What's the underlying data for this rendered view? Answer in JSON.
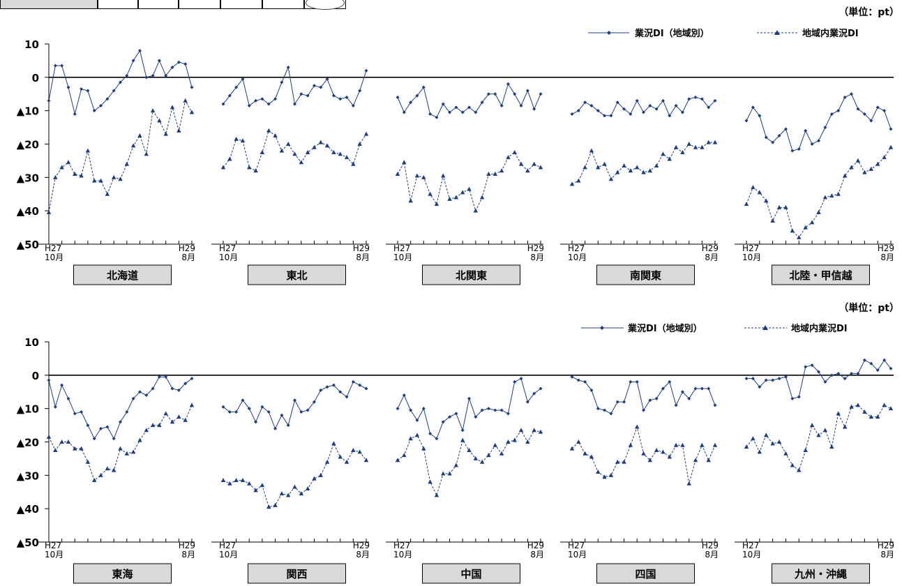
{
  "unit_label": "（単位：pt）",
  "legend": {
    "business": "業況DI（地域別）",
    "regional": "地域内業況DI"
  },
  "y_axis": {
    "ticks": [
      10,
      0,
      -10,
      -20,
      -30,
      -40,
      -50
    ],
    "tick_labels": [
      "10",
      "0",
      "▲10",
      "▲20",
      "▲30",
      "▲40",
      "▲50"
    ]
  },
  "x_axis": {
    "start_label": [
      "H27",
      "10月"
    ],
    "end_label": [
      "H29",
      "8月"
    ]
  },
  "colors": {
    "line": "#1f3d7a",
    "box_fill": "#d9d9d9"
  },
  "chart_data": [
    {
      "type": "line",
      "title": "北海道",
      "ylim": [
        -50,
        10
      ],
      "series": [
        {
          "name": "業況DI（地域別）",
          "values": [
            -7,
            3.5,
            3.5,
            -3,
            -11,
            -3.5,
            -4,
            -10,
            -8.5,
            -6.5,
            -4,
            -1.5,
            0.5,
            5,
            8,
            0,
            0.5,
            5,
            0.5,
            3,
            4.5,
            4,
            -3
          ]
        },
        {
          "name": "地域内業況DI",
          "values": [
            -40.5,
            -30,
            -27,
            -25.5,
            -29,
            -29.5,
            -22,
            -31,
            -31,
            -35,
            -30,
            -30.5,
            -26,
            -20.5,
            -17.5,
            -23,
            -10,
            -13,
            -17,
            -9,
            -16,
            -7,
            -10.5
          ]
        }
      ]
    },
    {
      "type": "line",
      "title": "東北",
      "ylim": [
        -50,
        10
      ],
      "series": [
        {
          "name": "業況DI（地域別）",
          "values": [
            -8,
            -5.5,
            -3,
            -0.5,
            -8.5,
            -7,
            -6.5,
            -8,
            -6.5,
            -1.5,
            3,
            -8,
            -5,
            -5.5,
            -2.5,
            -3,
            -0.5,
            -5.5,
            -6.5,
            -6,
            -8.5,
            -4,
            2
          ]
        },
        {
          "name": "地域内業況DI",
          "values": [
            -27,
            -24.5,
            -18.5,
            -19,
            -27,
            -28,
            -22.5,
            -16,
            -17.5,
            -22,
            -20,
            -23,
            -25.5,
            -22.5,
            -21,
            -19.5,
            -20.5,
            -22.5,
            -23,
            -24,
            -26,
            -20,
            -17
          ]
        }
      ]
    },
    {
      "type": "line",
      "title": "北関東",
      "ylim": [
        -50,
        10
      ],
      "series": [
        {
          "name": "業況DI（地域別）",
          "values": [
            -6,
            -10.5,
            -7.5,
            -5.5,
            -3,
            -11,
            -12,
            -8,
            -10.5,
            -9,
            -10.5,
            -9,
            -10.5,
            -7.5,
            -5,
            -5,
            -8.5,
            -2,
            -5,
            -8.5,
            -4,
            -9.5,
            -5
          ]
        },
        {
          "name": "地域内業況DI",
          "values": [
            -29,
            -25.5,
            -37,
            -29.5,
            -30,
            -35,
            -38,
            -29.5,
            -36.5,
            -36,
            -34.5,
            -33.5,
            -40,
            -36,
            -29,
            -29,
            -28,
            -24,
            -22.5,
            -26,
            -28,
            -26,
            -27
          ]
        }
      ]
    },
    {
      "type": "line",
      "title": "南関東",
      "ylim": [
        -50,
        10
      ],
      "series": [
        {
          "name": "業況DI（地域別）",
          "values": [
            -11,
            -10,
            -7.5,
            -8.5,
            -10,
            -11.5,
            -11.5,
            -7.5,
            -9.5,
            -11,
            -7,
            -10.5,
            -8.5,
            -9.5,
            -7,
            -11.5,
            -8.5,
            -10.5,
            -6.5,
            -6,
            -6.5,
            -9,
            -7
          ]
        },
        {
          "name": "地域内業況DI",
          "values": [
            -32,
            -31,
            -27,
            -22,
            -27,
            -26,
            -30.5,
            -28.5,
            -26.5,
            -28,
            -27,
            -28.5,
            -28,
            -26.5,
            -23,
            -24.5,
            -21,
            -22.5,
            -20,
            -21,
            -21,
            -19.5,
            -19.5
          ]
        }
      ]
    },
    {
      "type": "line",
      "title": "北陸・甲信越",
      "ylim": [
        -50,
        10
      ],
      "series": [
        {
          "name": "業況DI（地域別）",
          "values": [
            -13,
            -9,
            -11.5,
            -18,
            -19.5,
            -17.5,
            -15.5,
            -22,
            -21.5,
            -16,
            -20,
            -19,
            -15,
            -11,
            -10,
            -6,
            -5,
            -9.5,
            -11,
            -13,
            -9,
            -10,
            -15.5
          ]
        },
        {
          "name": "地域内業況DI",
          "values": [
            -38,
            -33,
            -34.5,
            -37,
            -43,
            -39,
            -39,
            -46,
            -48,
            -45,
            -43.5,
            -40.5,
            -36,
            -35.5,
            -35,
            -29.5,
            -27,
            -25,
            -28.5,
            -27.5,
            -26,
            -24,
            -21
          ]
        }
      ]
    },
    {
      "type": "line",
      "title": "東海",
      "ylim": [
        -50,
        10
      ],
      "series": [
        {
          "name": "業況DI（地域別）",
          "values": [
            -1.5,
            -9.5,
            -3,
            -7,
            -11.5,
            -11,
            -15,
            -19,
            -16,
            -15.5,
            -19,
            -14,
            -11,
            -7,
            -5,
            -6,
            -4,
            -0.5,
            -0.5,
            -4,
            -4.5,
            -2.5,
            -1
          ]
        },
        {
          "name": "地域内業況DI",
          "values": [
            -18.5,
            -22.5,
            -20,
            -20,
            -22,
            -22,
            -26,
            -31.5,
            -30,
            -28,
            -28.5,
            -22,
            -23.5,
            -23,
            -19.5,
            -16.5,
            -15,
            -15,
            -11.5,
            -14,
            -12.5,
            -13.5,
            -9
          ]
        }
      ]
    },
    {
      "type": "line",
      "title": "関西",
      "ylim": [
        -50,
        10
      ],
      "series": [
        {
          "name": "業況DI（地域別）",
          "values": [
            -9.5,
            -11,
            -11,
            -7.5,
            -10,
            -14,
            -9.5,
            -11,
            -16,
            -12,
            -15,
            -7.5,
            -11,
            -10.5,
            -8,
            -4.5,
            -3.5,
            -3,
            -5,
            -6.5,
            -2,
            -3,
            -4
          ]
        },
        {
          "name": "地域内業況DI",
          "values": [
            -31.5,
            -32.5,
            -31.5,
            -31.5,
            -32.5,
            -34.5,
            -33,
            -39.5,
            -39,
            -35.5,
            -36,
            -33.5,
            -35.5,
            -34,
            -31,
            -30,
            -26,
            -20.5,
            -24.5,
            -26,
            -22.5,
            -23,
            -25.5
          ]
        }
      ]
    },
    {
      "type": "line",
      "title": "中国",
      "ylim": [
        -50,
        10
      ],
      "series": [
        {
          "name": "業況DI（地域別）",
          "values": [
            -10,
            -6,
            -10.5,
            -13.5,
            -10,
            -17.5,
            -19,
            -14,
            -12.5,
            -11.5,
            -16.5,
            -7,
            -12.5,
            -10.5,
            -10,
            -10.5,
            -10.5,
            -11.5,
            -2,
            -1,
            -8,
            -5.5,
            -4
          ]
        },
        {
          "name": "地域内業況DI",
          "values": [
            -25.5,
            -24,
            -19,
            -18,
            -22,
            -32,
            -36,
            -29.5,
            -29.5,
            -27,
            -19.5,
            -22.5,
            -25,
            -26,
            -24,
            -21,
            -23.5,
            -20,
            -19.5,
            -16.5,
            -20,
            -16.5,
            -17
          ]
        }
      ]
    },
    {
      "type": "line",
      "title": "四国",
      "ylim": [
        -50,
        10
      ],
      "series": [
        {
          "name": "業況DI（地域別）",
          "values": [
            -0.5,
            -1.5,
            -2,
            -4.5,
            -10,
            -10.5,
            -11.5,
            -8,
            -8,
            -2,
            -2,
            -10.5,
            -7.5,
            -7,
            -4,
            -2,
            -9,
            -5,
            -7,
            -4,
            -4,
            -4,
            -9
          ]
        },
        {
          "name": "地域内業況DI",
          "values": [
            -22,
            -20,
            -23.5,
            -24.5,
            -29,
            -30.5,
            -30,
            -26,
            -26,
            -21,
            -15.5,
            -23.5,
            -25.5,
            -22.5,
            -23,
            -24.5,
            -21,
            -21,
            -32.5,
            -25.5,
            -21,
            -25.5,
            -21
          ]
        }
      ]
    },
    {
      "type": "line",
      "title": "九州・沖縄",
      "ylim": [
        -50,
        10
      ],
      "series": [
        {
          "name": "業況DI（地域別）",
          "values": [
            -1,
            -1,
            -3.5,
            -1.5,
            -1.5,
            -1,
            -0.5,
            -7,
            -6.5,
            2.5,
            3,
            1,
            -2,
            0,
            0.5,
            -1,
            0.5,
            0.5,
            4.5,
            3.5,
            1.5,
            4.5,
            2
          ]
        },
        {
          "name": "地域内業況DI",
          "values": [
            -21.5,
            -19,
            -23,
            -18,
            -20.5,
            -20,
            -23.5,
            -27,
            -28.5,
            -22.5,
            -15,
            -18,
            -16.5,
            -21.5,
            -11.5,
            -15.5,
            -9.5,
            -9,
            -11,
            -12.5,
            -12.5,
            -9,
            -10
          ]
        }
      ]
    }
  ]
}
